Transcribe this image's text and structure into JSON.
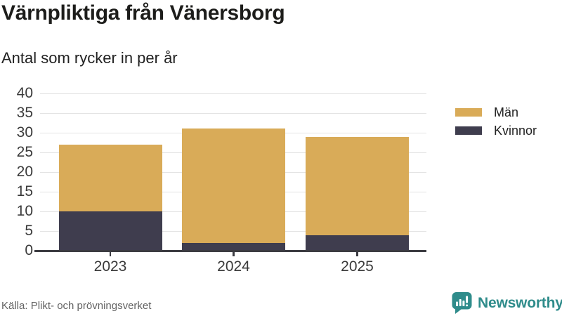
{
  "title": "Värnpliktiga från Vänersborg",
  "subtitle": "Antal som rycker in per år",
  "source": "Källa: Plikt- och prövningsverket",
  "branding": {
    "name": "Newsworthy",
    "icon": "newsworthy-speech-bubble-bar-chart-icon",
    "color": "#2f8c8b"
  },
  "legend": [
    {
      "label": "Män",
      "color": "#d9ab58"
    },
    {
      "label": "Kvinnor",
      "color": "#3f3d4e"
    }
  ],
  "colors": {
    "men_bar": "#d9ab58",
    "women_bar": "#3f3d4e",
    "gridline": "#e3e3e3",
    "axis": "#3c3c42",
    "text": "#222222",
    "muted_text": "#636363"
  },
  "chart_data": {
    "type": "bar",
    "stacked": true,
    "title": "Värnpliktiga från Vänersborg",
    "subtitle": "Antal som rycker in per år",
    "categories": [
      "2023",
      "2024",
      "2025"
    ],
    "series": [
      {
        "name": "Kvinnor",
        "color": "#3f3d4e",
        "values": [
          10,
          2,
          4
        ]
      },
      {
        "name": "Män",
        "color": "#d9ab58",
        "values": [
          17,
          29,
          25
        ]
      }
    ],
    "totals": [
      27,
      31,
      29
    ],
    "xlabel": "",
    "ylabel": "",
    "ylim": [
      0,
      40
    ],
    "ytick_step": 5,
    "grid": true,
    "legend_position": "right"
  }
}
